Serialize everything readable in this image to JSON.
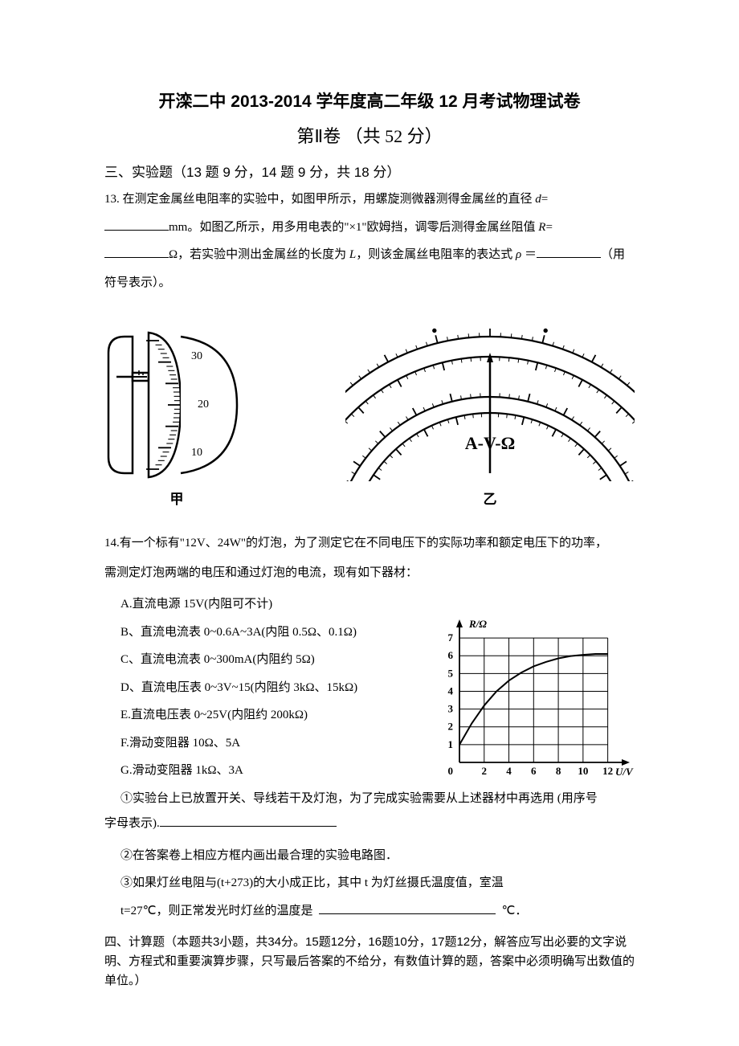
{
  "title": "开滦二中 2013-2014 学年度高二年级 12 月考试物理试卷",
  "subtitle": "第Ⅱ卷   （共 52 分）",
  "section3": {
    "header": "三、实验题（13 题 9 分，14 题 9 分，共 18 分）",
    "q13_line1_a": "13. 在测定金属丝电阻率的实验中，如图甲所示，用螺旋测微器测得金属丝的直径 ",
    "q13_line1_b": "=",
    "q13_line2_a": "mm。如图乙所示，用多用电表的\"×1\"欧姆挡，调零后测得金属丝阻值 ",
    "q13_line2_b": "=",
    "q13_line3_a": "Ω，若实验中测出金属丝的长度为 ",
    "q13_line3_b": "，则该金属丝电阻率的表达式 ",
    "q13_line3_c": " ＝",
    "q13_line3_d": "（用",
    "q13_line4": "符号表示）。",
    "d_var": "d",
    "R_var": "R",
    "L_var": "L",
    "rho_var": "ρ"
  },
  "diagram": {
    "micrometer_label": "甲",
    "ohmmeter_label": "乙",
    "micrometer_ticks": [
      "30",
      "20",
      "10"
    ],
    "ohmmeter_text": "A-V-Ω"
  },
  "q14": {
    "intro_a": "14.有一个标有\"12V、24W\"的灯泡，为了测定它在不同电压下的实际功率和额定电压下的功率，",
    "intro_b": "需测定灯泡两端的电压和通过灯泡的电流，现有如下器材：",
    "opts": {
      "A": "A.直流电源 15V(内阻可不计)",
      "B": "B、直流电流表 0~0.6A~3A(内阻 0.5Ω、0.1Ω)",
      "C": "C、直流电流表 0~300mA(内阻约 5Ω)",
      "D": "D、直流电压表 0~3V~15(内阻约 3kΩ、15kΩ)",
      "E": "E.直流电压表 0~25V(内阻约 200kΩ)",
      "F": "F.滑动变阻器 10Ω、5A",
      "G": "G.滑动变阻器 1kΩ、3A"
    },
    "sub1_a": "①实验台上已放置开关、导线若干及灯泡，为了完成实验需要从上述器材中再选用 (用序号",
    "sub1_b": "字母表示).",
    "sub2": "②在答案卷上相应方框内画出最合理的实验电路图．",
    "sub3_a": "③如果灯丝电阻与(t+273)的大小成正比，其中 t 为灯丝摄氏温度值，室温",
    "sub3_b": "t=27℃，则正常发光时灯丝的温度是",
    "sub3_c": "℃．"
  },
  "chart": {
    "ylabel": "R/Ω",
    "xlabel": "U/V",
    "yticks": [
      "0",
      "1",
      "2",
      "3",
      "4",
      "5",
      "6",
      "7"
    ],
    "xticks": [
      "0",
      "2",
      "4",
      "6",
      "8",
      "10",
      "12"
    ],
    "xlim": [
      0,
      13
    ],
    "ylim": [
      0,
      7.5
    ],
    "curve_points": [
      [
        0,
        1
      ],
      [
        1,
        2.2
      ],
      [
        2,
        3.2
      ],
      [
        3,
        4.0
      ],
      [
        4,
        4.6
      ],
      [
        5,
        5.05
      ],
      [
        6,
        5.4
      ],
      [
        7,
        5.65
      ],
      [
        8,
        5.85
      ],
      [
        9,
        5.98
      ],
      [
        10,
        6.05
      ],
      [
        11,
        6.1
      ],
      [
        12,
        6.1
      ]
    ],
    "grid_color": "#000000",
    "background_color": "#ffffff",
    "line_color": "#000000",
    "line_width": 2,
    "font_size": 13
  },
  "section4": {
    "header": "四、计算题（本题共3小题，共34分。15题12分，16题10分，17题12分，解答应写出必要的文字说明、方程式和重要演算步骤，只写最后答案的不给分，有数值计算的题，答案中必须明确写出数值的单位。）"
  }
}
